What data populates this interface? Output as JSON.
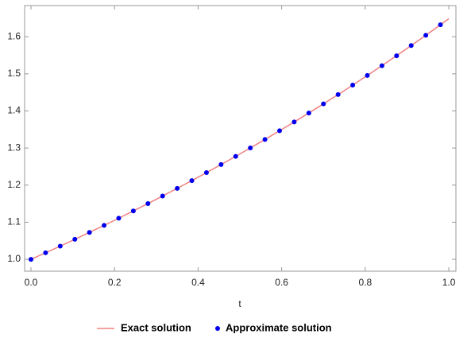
{
  "chart_data": {
    "type": "line",
    "xlabel": "t",
    "xlim": [
      -0.0152,
      1.017
    ],
    "ylim": [
      0.968,
      1.684
    ],
    "xticks": [
      {
        "value": 0,
        "label": "0.0"
      },
      0.2,
      0.4,
      0.6,
      0.8,
      {
        "value": 1,
        "label": "1.0"
      }
    ],
    "yticks": [
      {
        "value": 1,
        "label": "1.0"
      },
      1.1,
      1.2,
      1.3,
      1.4,
      1.5,
      1.6
    ],
    "grid": false,
    "legend": "bottom",
    "series": [
      {
        "name": "Exact solution",
        "color": "#f08080",
        "style": "line",
        "x": [
          0,
          0.05,
          0.1,
          0.15,
          0.2,
          0.25,
          0.3,
          0.35,
          0.4,
          0.45,
          0.5,
          0.55,
          0.6,
          0.65,
          0.7,
          0.75,
          0.8,
          0.85,
          0.9,
          0.95,
          1
        ],
        "values": [
          1,
          1.0253,
          1.0513,
          1.0779,
          1.1052,
          1.1331,
          1.1618,
          1.1912,
          1.2214,
          1.2523,
          1.284,
          1.3165,
          1.3499,
          1.384,
          1.4191,
          1.455,
          1.4918,
          1.5296,
          1.5683,
          1.608,
          1.6487
        ]
      },
      {
        "name": "Approximate solution",
        "color": "#0000ee",
        "style": "markers",
        "x": [
          0,
          0.035,
          0.07,
          0.105,
          0.14,
          0.175,
          0.21,
          0.245,
          0.28,
          0.315,
          0.35,
          0.385,
          0.42,
          0.455,
          0.49,
          0.525,
          0.56,
          0.595,
          0.63,
          0.665,
          0.7,
          0.735,
          0.77,
          0.805,
          0.84,
          0.875,
          0.91,
          0.945,
          0.98
        ],
        "values": [
          1,
          1.0177,
          1.0356,
          1.0539,
          1.0725,
          1.0914,
          1.1107,
          1.1303,
          1.1503,
          1.1706,
          1.1912,
          1.2122,
          1.2337,
          1.2555,
          1.2776,
          1.3002,
          1.3231,
          1.3465,
          1.3703,
          1.3944,
          1.4191,
          1.4441,
          1.4696,
          1.4956,
          1.522,
          1.5488,
          1.5762,
          1.604,
          1.6323
        ]
      }
    ]
  }
}
